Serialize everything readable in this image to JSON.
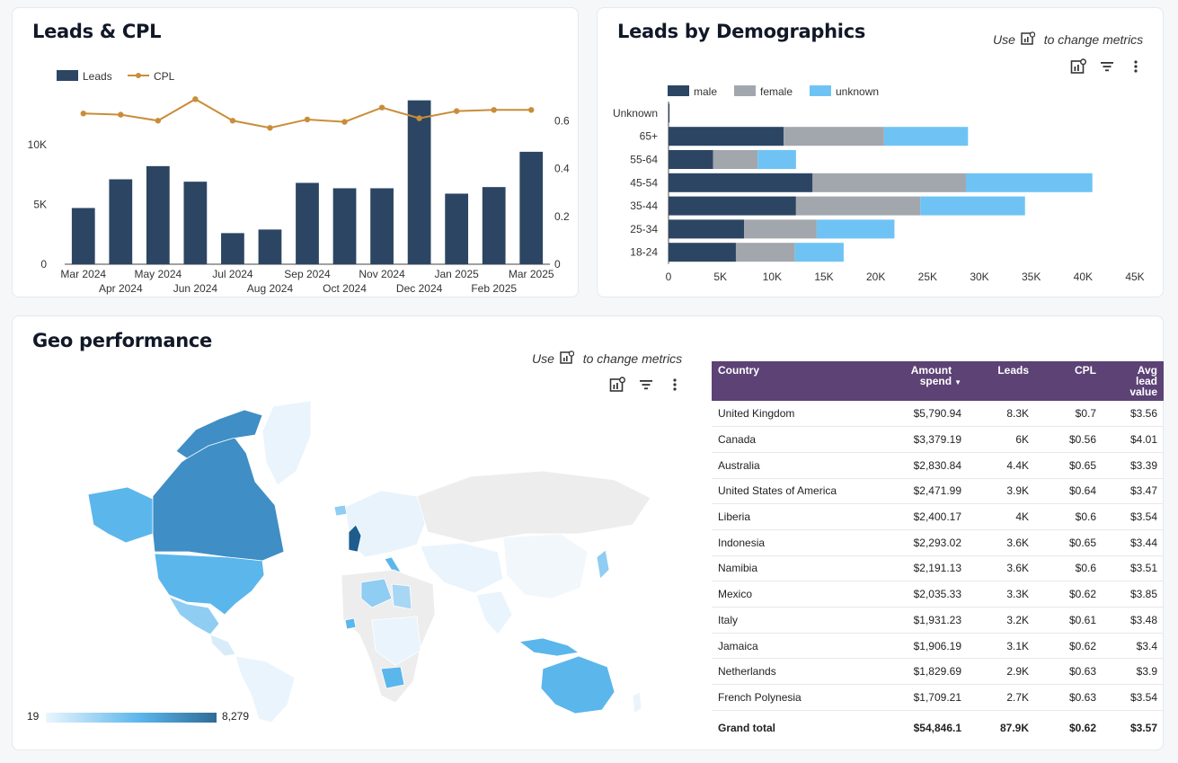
{
  "leads_cpl": {
    "title": "Leads & CPL"
  },
  "demographics": {
    "title": "Leads by Demographics",
    "hint_prefix": "Use",
    "hint_suffix": "to change metrics"
  },
  "geo": {
    "title": "Geo performance",
    "hint_prefix": "Use",
    "hint_suffix": "to change metrics",
    "legend_min": "19",
    "legend_max": "8,279",
    "table": {
      "columns": [
        "Country",
        "Amount spend",
        "Leads",
        "CPL",
        "Avg lead value"
      ],
      "rows": [
        [
          "United Kingdom",
          "$5,790.94",
          "8.3K",
          "$0.7",
          "$3.56"
        ],
        [
          "Canada",
          "$3,379.19",
          "6K",
          "$0.56",
          "$4.01"
        ],
        [
          "Australia",
          "$2,830.84",
          "4.4K",
          "$0.65",
          "$3.39"
        ],
        [
          "United States of America",
          "$2,471.99",
          "3.9K",
          "$0.64",
          "$3.47"
        ],
        [
          "Liberia",
          "$2,400.17",
          "4K",
          "$0.6",
          "$3.54"
        ],
        [
          "Indonesia",
          "$2,293.02",
          "3.6K",
          "$0.65",
          "$3.44"
        ],
        [
          "Namibia",
          "$2,191.13",
          "3.6K",
          "$0.6",
          "$3.51"
        ],
        [
          "Mexico",
          "$2,035.33",
          "3.3K",
          "$0.62",
          "$3.85"
        ],
        [
          "Italy",
          "$1,931.23",
          "3.2K",
          "$0.61",
          "$3.48"
        ],
        [
          "Jamaica",
          "$1,906.19",
          "3.1K",
          "$0.62",
          "$3.4"
        ],
        [
          "Netherlands",
          "$1,829.69",
          "2.9K",
          "$0.63",
          "$3.9"
        ],
        [
          "French Polynesia",
          "$1,709.21",
          "2.7K",
          "$0.63",
          "$3.54"
        ]
      ],
      "total": [
        "Grand total",
        "$54,846.1",
        "87.9K",
        "$0.62",
        "$3.57"
      ]
    }
  },
  "colors": {
    "bar": "#2c4563",
    "line": "#c98d3a",
    "male": "#2c4563",
    "female": "#a2a7ad",
    "unknown": "#6fc3f4",
    "header": "#5c4275"
  },
  "chart_data": [
    {
      "type": "bar+line",
      "categories": [
        "Mar 2024",
        "Apr 2024",
        "May 2024",
        "Jun 2024",
        "Jul 2024",
        "Aug 2024",
        "Sep 2024",
        "Oct 2024",
        "Nov 2024",
        "Dec 2024",
        "Jan 2025",
        "Feb 2025",
        "Mar 2025"
      ],
      "series": [
        {
          "name": "Leads",
          "type": "bar",
          "axis": "left",
          "values": [
            4700,
            7100,
            8200,
            6900,
            2600,
            2900,
            6800,
            6350,
            6350,
            13700,
            5900,
            6450,
            9400
          ]
        },
        {
          "name": "CPL",
          "type": "line",
          "axis": "right",
          "values": [
            0.63,
            0.625,
            0.6,
            0.69,
            0.6,
            0.57,
            0.605,
            0.595,
            0.655,
            0.61,
            0.64,
            0.645,
            0.645
          ]
        }
      ],
      "y_left": {
        "ticks": [
          "0",
          "5K",
          "10K"
        ],
        "tick_values": [
          0,
          5000,
          10000
        ],
        "range": [
          0,
          14200
        ]
      },
      "y_right": {
        "ticks": [
          "0",
          "0.2",
          "0.4",
          "0.6"
        ],
        "tick_values": [
          0,
          0.2,
          0.4,
          0.6
        ],
        "range": [
          0,
          0.71
        ]
      },
      "legend": "top-left",
      "grid": false
    },
    {
      "type": "bar",
      "orientation": "horizontal",
      "stacked": true,
      "categories": [
        "Unknown",
        "65+",
        "55-64",
        "45-54",
        "35-44",
        "25-34",
        "18-24"
      ],
      "series": [
        {
          "name": "male",
          "values": [
            100,
            11100,
            4300,
            13900,
            12300,
            7300,
            6500
          ]
        },
        {
          "name": "female",
          "values": [
            0,
            9700,
            4300,
            14800,
            12000,
            7000,
            5700
          ]
        },
        {
          "name": "unknown",
          "values": [
            0,
            8100,
            3700,
            12200,
            10100,
            7500,
            4700
          ]
        }
      ],
      "x_ticks": [
        "0",
        "5K",
        "10K",
        "15K",
        "20K",
        "25K",
        "30K",
        "35K",
        "40K",
        "45K"
      ],
      "x_tick_values": [
        0,
        5000,
        10000,
        15000,
        20000,
        25000,
        30000,
        35000,
        40000,
        45000
      ],
      "xlim": [
        0,
        45000
      ],
      "legend": "top-left",
      "grid": false
    },
    {
      "type": "table",
      "title": "Geo performance",
      "metric": "Leads",
      "range": [
        19,
        8279
      ],
      "highlighted_regions": [
        "United Kingdom",
        "Canada",
        "Australia",
        "United States of America",
        "Liberia",
        "Indonesia",
        "Namibia",
        "Mexico",
        "Italy",
        "Jamaica",
        "Netherlands",
        "French Polynesia"
      ]
    }
  ]
}
